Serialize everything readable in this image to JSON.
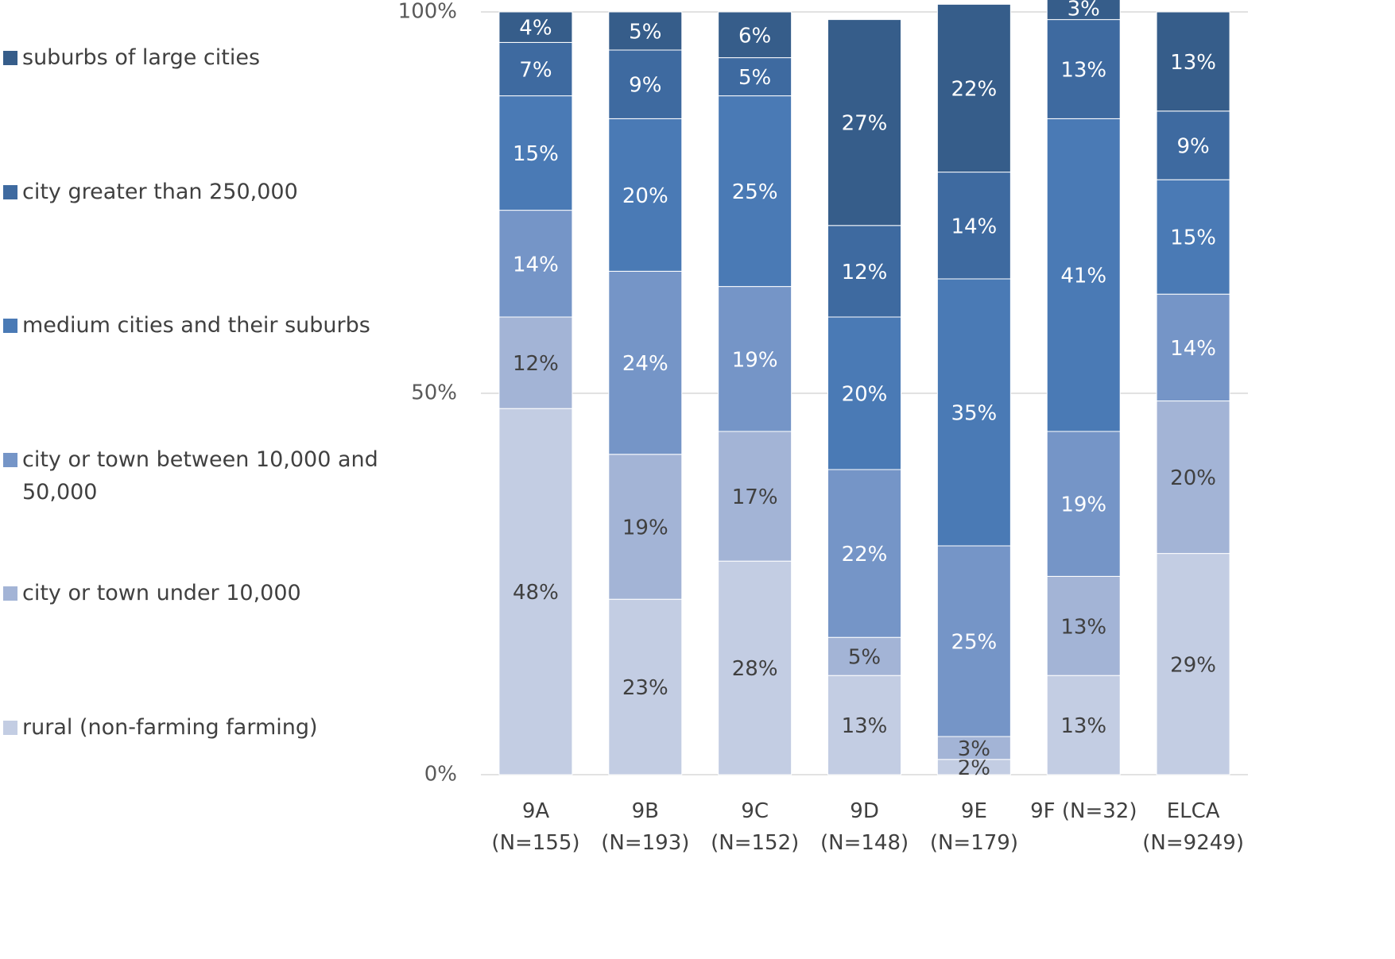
{
  "chart_data": {
    "type": "stacked_bar",
    "categories": [
      "9A\n(N=155)",
      "9B\n(N=193)",
      "9C\n(N=152)",
      "9D\n(N=148)",
      "9E\n(N=179)",
      "9F (N=32)",
      "ELCA\n(N=9249)"
    ],
    "ylim": [
      0,
      100
    ],
    "yticks": [
      {
        "value": 0,
        "label": "0%"
      },
      {
        "value": 50,
        "label": "50%"
      },
      {
        "value": 100,
        "label": "100%"
      }
    ],
    "grid": true,
    "legend": "left",
    "series": [
      {
        "name": "rural (non-farming farming)",
        "color": "#c3cde3",
        "values": [
          48,
          23,
          28,
          13,
          2,
          13,
          29
        ],
        "value_labels": [
          "48%",
          "23%",
          "28%",
          "13%",
          "2%",
          "13%",
          "29%"
        ]
      },
      {
        "name": "city or town under 10,000",
        "color": "#a3b4d6",
        "values": [
          12,
          19,
          17,
          5,
          3,
          13,
          20
        ],
        "value_labels": [
          "12%",
          "19%",
          "17%",
          "5%",
          "3%",
          "13%",
          "20%"
        ]
      },
      {
        "name": "city or town between 10,000 and 50,000",
        "color": "#7595c7",
        "values": [
          14,
          24,
          19,
          22,
          25,
          19,
          14
        ],
        "value_labels": [
          "14%",
          "24%",
          "19%",
          "22%",
          "25%",
          "19%",
          "14%"
        ]
      },
      {
        "name": "medium cities and their suburbs",
        "color": "#4a7ab5",
        "values": [
          15,
          20,
          25,
          20,
          35,
          41,
          15
        ],
        "value_labels": [
          "15%",
          "20%",
          "25%",
          "20%",
          "35%",
          "41%",
          "15%"
        ]
      },
      {
        "name": "city greater than 250,000",
        "color": "#3e6aa0",
        "values": [
          7,
          9,
          5,
          12,
          14,
          13,
          9
        ],
        "value_labels": [
          "7%",
          "9%",
          "5%",
          "12%",
          "14%",
          "13%",
          "9%"
        ]
      },
      {
        "name": "suburbs of large cities",
        "color": "#365d8a",
        "values": [
          4,
          5,
          6,
          27,
          22,
          3,
          13
        ],
        "value_labels": [
          "4%",
          "5%",
          "6%",
          "27%",
          "22%",
          "3%",
          "13%"
        ]
      }
    ]
  }
}
